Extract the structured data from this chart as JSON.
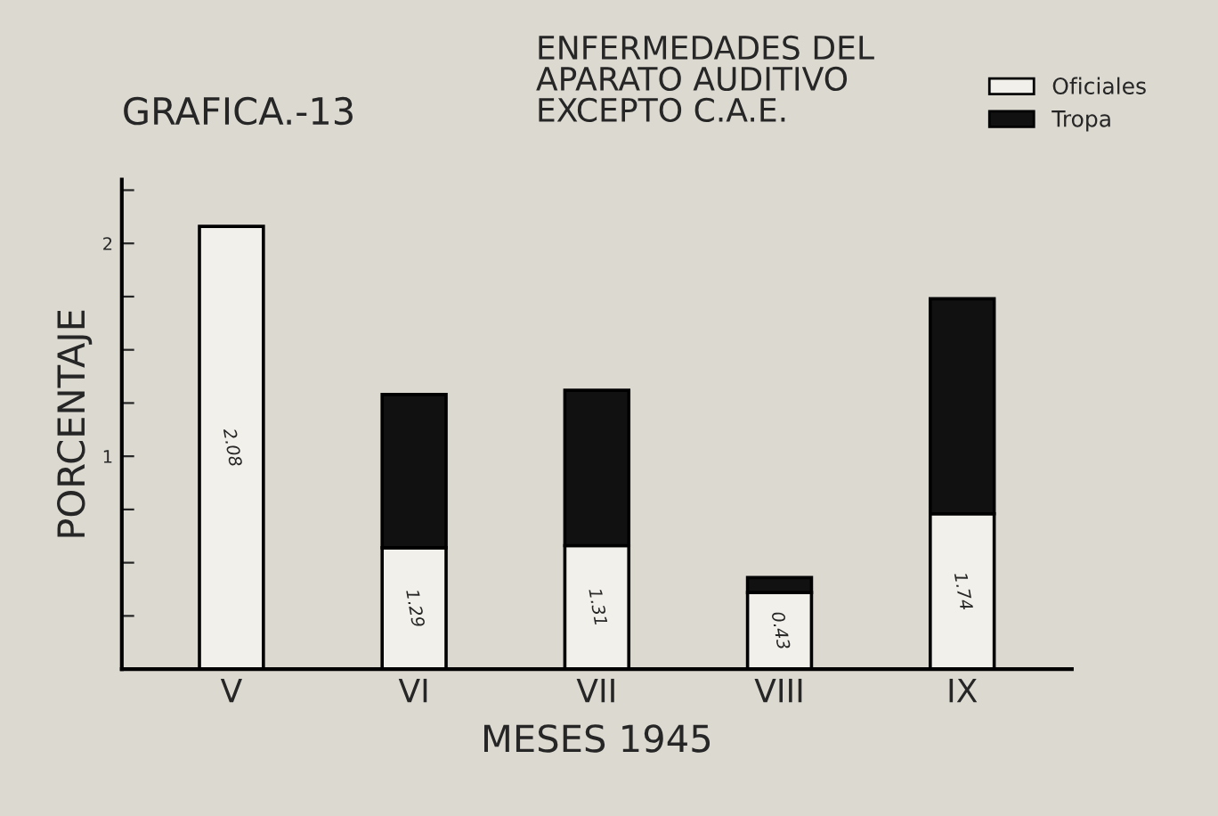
{
  "chart_data": {
    "type": "bar",
    "title": "GRAFICA.-13",
    "subtitle": "ENFERMEDADES DEL\nAPARATO AUDITIVO\nEXCEPTO C.A.E.",
    "xlabel": "MESES 1945",
    "ylabel": "PORCENTAJE",
    "categories": [
      "V",
      "VI",
      "VII",
      "VIII",
      "IX"
    ],
    "stacked": true,
    "series": [
      {
        "name": "Oficiales",
        "color": "#f2f0ea",
        "values": [
          2.08,
          0.57,
          0.58,
          0.36,
          0.73
        ]
      },
      {
        "name": "Tropa",
        "color": "#111111",
        "values": [
          null,
          0.72,
          0.73,
          0.07,
          1.01
        ]
      }
    ],
    "totals": [
      "2.08",
      "1.29",
      "1.31",
      "0.43",
      "1.74"
    ],
    "ylim": [
      0,
      2.3
    ],
    "yticks": [
      {
        "value": 0,
        "label": null
      },
      {
        "value": 0.25,
        "label": null
      },
      {
        "value": 0.5,
        "label": null
      },
      {
        "value": 0.75,
        "label": null
      },
      1,
      {
        "value": 1.25,
        "label": null
      },
      {
        "value": 1.5,
        "label": null
      },
      {
        "value": 1.75,
        "label": null
      },
      2,
      {
        "value": 2.25,
        "label": null
      }
    ],
    "legend": "top right",
    "grid": false
  }
}
